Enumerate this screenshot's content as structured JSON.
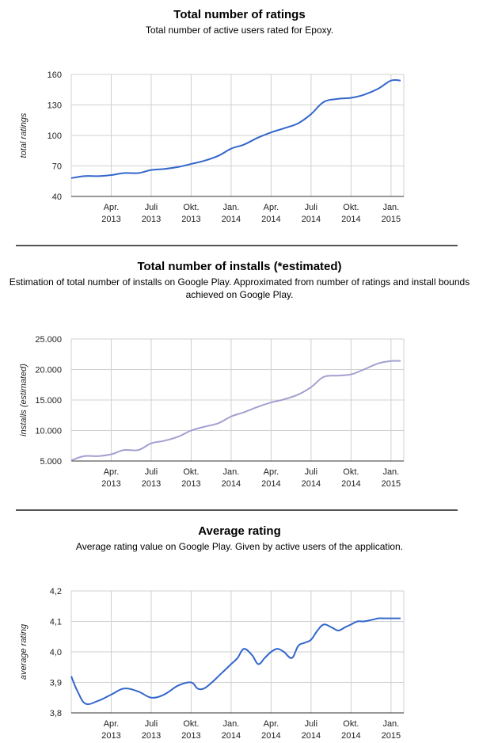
{
  "colors": {
    "series1": "#3366cc",
    "series2": "#a3a0d0",
    "grid": "#d0d0d0",
    "axis": "#333333"
  },
  "chart_data": [
    {
      "type": "line",
      "title": "Total number of ratings",
      "subtitle": "Total number of active users rated for Epoxy.",
      "xlabel": "",
      "ylabel": "total ratings",
      "ylim": [
        40,
        160
      ],
      "yticks": [
        40,
        70,
        100,
        130,
        160
      ],
      "ytick_labels": [
        "40",
        "70",
        "100",
        "130",
        "160"
      ],
      "xlim": [
        2013.0,
        2015.08
      ],
      "xticks": [
        {
          "pos": 2013.25,
          "line1": "Apr.",
          "line2": "2013"
        },
        {
          "pos": 2013.5,
          "line1": "Juli",
          "line2": "2013"
        },
        {
          "pos": 2013.75,
          "line1": "Okt.",
          "line2": "2013"
        },
        {
          "pos": 2014.0,
          "line1": "Jan.",
          "line2": "2014"
        },
        {
          "pos": 2014.25,
          "line1": "Apr.",
          "line2": "2014"
        },
        {
          "pos": 2014.5,
          "line1": "Juli",
          "line2": "2014"
        },
        {
          "pos": 2014.75,
          "line1": "Okt.",
          "line2": "2014"
        },
        {
          "pos": 2015.0,
          "line1": "Jan.",
          "line2": "2015"
        }
      ],
      "series": [
        {
          "name": "total ratings",
          "x": [
            2013.0,
            2013.08,
            2013.17,
            2013.25,
            2013.33,
            2013.42,
            2013.5,
            2013.58,
            2013.67,
            2013.75,
            2013.83,
            2013.92,
            2014.0,
            2014.08,
            2014.17,
            2014.25,
            2014.33,
            2014.42,
            2014.5,
            2014.58,
            2014.67,
            2014.75,
            2014.83,
            2014.92,
            2015.0,
            2015.06
          ],
          "y": [
            58,
            60,
            60,
            61,
            63,
            63,
            66,
            67,
            69,
            72,
            75,
            80,
            87,
            91,
            98,
            103,
            107,
            112,
            121,
            133,
            136,
            137,
            140,
            146,
            154,
            154
          ]
        }
      ]
    },
    {
      "type": "line",
      "title": "Total number of installs (*estimated)",
      "subtitle": "Estimation of total number of installs on Google Play. Approximated from number of ratings and install bounds achieved on Google Play.",
      "xlabel": "",
      "ylabel": "installs (estimated)",
      "ylim": [
        5000,
        25000
      ],
      "yticks": [
        5000,
        10000,
        15000,
        20000,
        25000
      ],
      "ytick_labels": [
        "5.000",
        "10.000",
        "15.000",
        "20.000",
        "25.000"
      ],
      "xlim": [
        2013.0,
        2015.08
      ],
      "xticks": [
        {
          "pos": 2013.25,
          "line1": "Apr.",
          "line2": "2013"
        },
        {
          "pos": 2013.5,
          "line1": "Juli",
          "line2": "2013"
        },
        {
          "pos": 2013.75,
          "line1": "Okt.",
          "line2": "2013"
        },
        {
          "pos": 2014.0,
          "line1": "Jan.",
          "line2": "2014"
        },
        {
          "pos": 2014.25,
          "line1": "Apr.",
          "line2": "2014"
        },
        {
          "pos": 2014.5,
          "line1": "Juli",
          "line2": "2014"
        },
        {
          "pos": 2014.75,
          "line1": "Okt.",
          "line2": "2014"
        },
        {
          "pos": 2015.0,
          "line1": "Jan.",
          "line2": "2015"
        }
      ],
      "series": [
        {
          "name": "installs (estimated)",
          "x": [
            2013.0,
            2013.08,
            2013.17,
            2013.25,
            2013.33,
            2013.42,
            2013.5,
            2013.58,
            2013.67,
            2013.75,
            2013.83,
            2013.92,
            2014.0,
            2014.08,
            2014.17,
            2014.25,
            2014.33,
            2014.42,
            2014.5,
            2014.58,
            2014.67,
            2014.75,
            2014.83,
            2014.92,
            2015.0,
            2015.06
          ],
          "y": [
            5100,
            5800,
            5800,
            6100,
            6800,
            6800,
            7900,
            8300,
            9000,
            10000,
            10600,
            11200,
            12300,
            13000,
            13900,
            14600,
            15100,
            15900,
            17100,
            18800,
            19000,
            19200,
            20000,
            21000,
            21400,
            21400
          ]
        }
      ]
    },
    {
      "type": "line",
      "title": "Average rating",
      "subtitle": "Average rating value on Google Play. Given by active users of the application.",
      "xlabel": "",
      "ylabel": "average rating",
      "ylim": [
        3.8,
        4.2
      ],
      "yticks": [
        3.8,
        3.9,
        4.0,
        4.1,
        4.2
      ],
      "ytick_labels": [
        "3,8",
        "3,9",
        "4,0",
        "4,1",
        "4,2"
      ],
      "xlim": [
        2013.0,
        2015.08
      ],
      "xticks": [
        {
          "pos": 2013.25,
          "line1": "Apr.",
          "line2": "2013"
        },
        {
          "pos": 2013.5,
          "line1": "Juli",
          "line2": "2013"
        },
        {
          "pos": 2013.75,
          "line1": "Okt.",
          "line2": "2013"
        },
        {
          "pos": 2014.0,
          "line1": "Jan.",
          "line2": "2014"
        },
        {
          "pos": 2014.25,
          "line1": "Apr.",
          "line2": "2014"
        },
        {
          "pos": 2014.5,
          "line1": "Juli",
          "line2": "2014"
        },
        {
          "pos": 2014.75,
          "line1": "Okt.",
          "line2": "2014"
        },
        {
          "pos": 2015.0,
          "line1": "Jan.",
          "line2": "2015"
        }
      ],
      "series": [
        {
          "name": "average rating",
          "x": [
            2013.0,
            2013.04,
            2013.09,
            2013.17,
            2013.25,
            2013.33,
            2013.42,
            2013.5,
            2013.58,
            2013.67,
            2013.75,
            2013.79,
            2013.83,
            2013.88,
            2013.92,
            2013.96,
            2014.0,
            2014.04,
            2014.08,
            2014.13,
            2014.17,
            2014.21,
            2014.25,
            2014.29,
            2014.33,
            2014.38,
            2014.42,
            2014.46,
            2014.5,
            2014.54,
            2014.58,
            2014.63,
            2014.67,
            2014.71,
            2014.75,
            2014.79,
            2014.83,
            2014.88,
            2014.92,
            2014.96,
            2015.0,
            2015.06
          ],
          "y": [
            3.92,
            3.87,
            3.83,
            3.84,
            3.86,
            3.88,
            3.87,
            3.85,
            3.86,
            3.89,
            3.9,
            3.88,
            3.88,
            3.9,
            3.92,
            3.94,
            3.96,
            3.98,
            4.01,
            3.99,
            3.96,
            3.98,
            4.0,
            4.01,
            4.0,
            3.98,
            4.02,
            4.03,
            4.04,
            4.07,
            4.09,
            4.08,
            4.07,
            4.08,
            4.09,
            4.1,
            4.1,
            4.105,
            4.11,
            4.11,
            4.11,
            4.11
          ]
        }
      ]
    }
  ]
}
